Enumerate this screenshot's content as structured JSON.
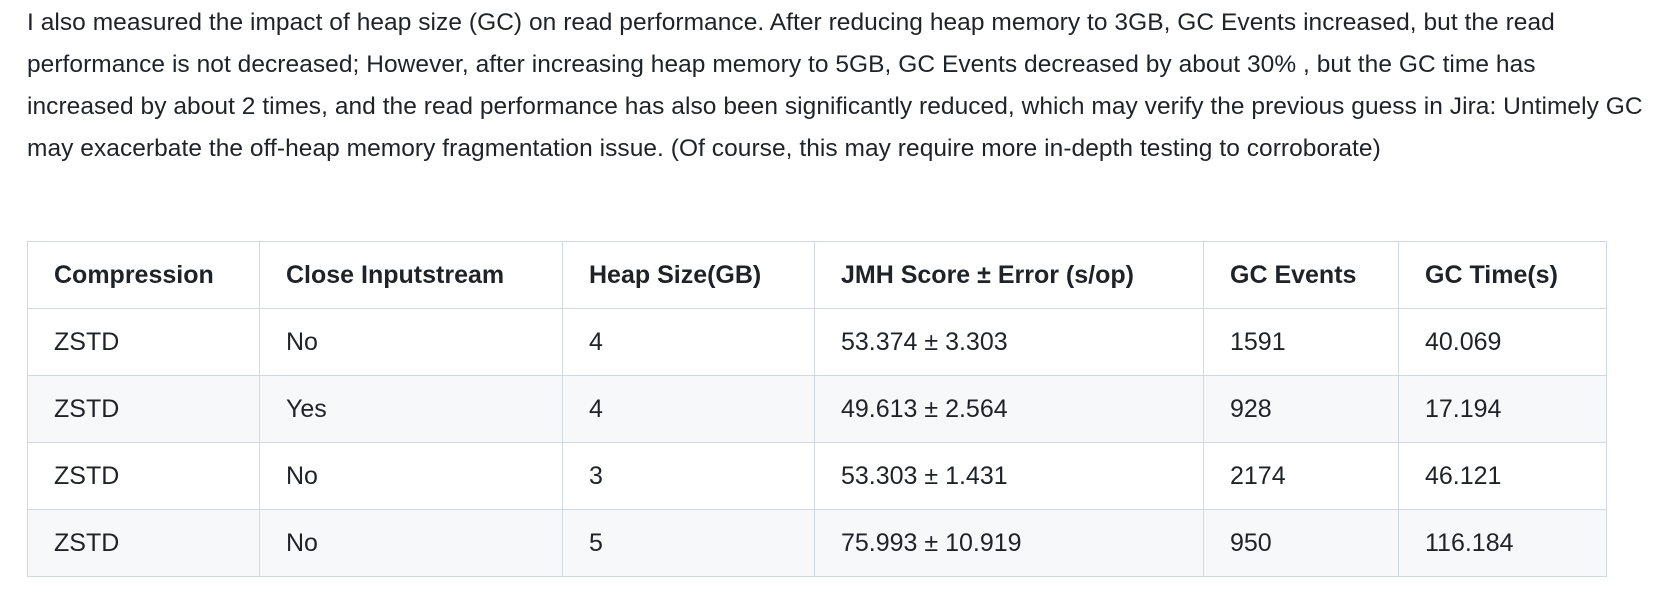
{
  "paragraph": "I also measured the impact of heap size (GC) on read performance. After reducing heap memory to 3GB, GC Events increased, but the read performance is not decreased; However, after increasing heap memory to 5GB, GC Events decreased by about 30% , but the GC time has increased by about 2 times, and the read performance has also been significantly reduced, which may verify the previous guess in Jira: Untimely GC may exacerbate the off-heap memory fragmentation issue. (Of course, this may require more in-depth testing to corroborate)",
  "table": {
    "headers": [
      "Compression",
      "Close Inputstream",
      "Heap Size(GB)",
      "JMH Score ± Error (s/op)",
      "GC Events",
      "GC Time(s)"
    ],
    "rows": [
      [
        "ZSTD",
        "No",
        "4",
        "53.374 ± 3.303",
        "1591",
        "40.069"
      ],
      [
        "ZSTD",
        "Yes",
        "4",
        "49.613 ± 2.564",
        "928",
        "17.194"
      ],
      [
        "ZSTD",
        "No",
        "3",
        "53.303 ± 1.431",
        "2174",
        "46.121"
      ],
      [
        "ZSTD",
        "No",
        "5",
        "75.993 ± 10.919",
        "950",
        "116.184"
      ]
    ]
  }
}
